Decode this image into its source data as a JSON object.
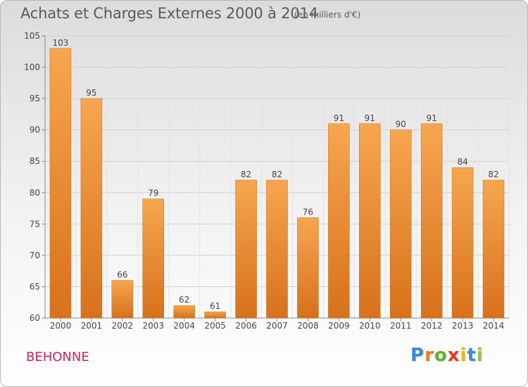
{
  "header": {
    "title": "Achats et Charges Externes 2000 à 2014",
    "subtitle": "(en milliers d'€)"
  },
  "footer": {
    "place": "BEHONNE",
    "logo_letters": [
      "P",
      "r",
      "o",
      "x",
      "i",
      "t",
      "i"
    ],
    "logo_colors": [
      "#3a8ad6",
      "#f07a1a",
      "#5ab52e",
      "#e8382a",
      "#f5b400",
      "#3a8ad6",
      "#8bc34a"
    ]
  },
  "chart_data": {
    "type": "bar",
    "title": "Achats et Charges Externes 2000 à 2014",
    "subtitle": "(en milliers d'€)",
    "xlabel": "",
    "ylabel": "",
    "categories": [
      "2000",
      "2001",
      "2002",
      "2003",
      "2004",
      "2005",
      "2006",
      "2007",
      "2008",
      "2009",
      "2010",
      "2011",
      "2012",
      "2013",
      "2014"
    ],
    "values": [
      103,
      95,
      66,
      79,
      62,
      61,
      82,
      82,
      76,
      91,
      91,
      90,
      91,
      84,
      82
    ],
    "ylim": [
      60,
      105
    ],
    "yticks": [
      60,
      65,
      70,
      75,
      80,
      85,
      90,
      95,
      100,
      105
    ],
    "grid": true,
    "bar_color_top": "#f6a64f",
    "bar_color_bottom": "#d7711c"
  }
}
